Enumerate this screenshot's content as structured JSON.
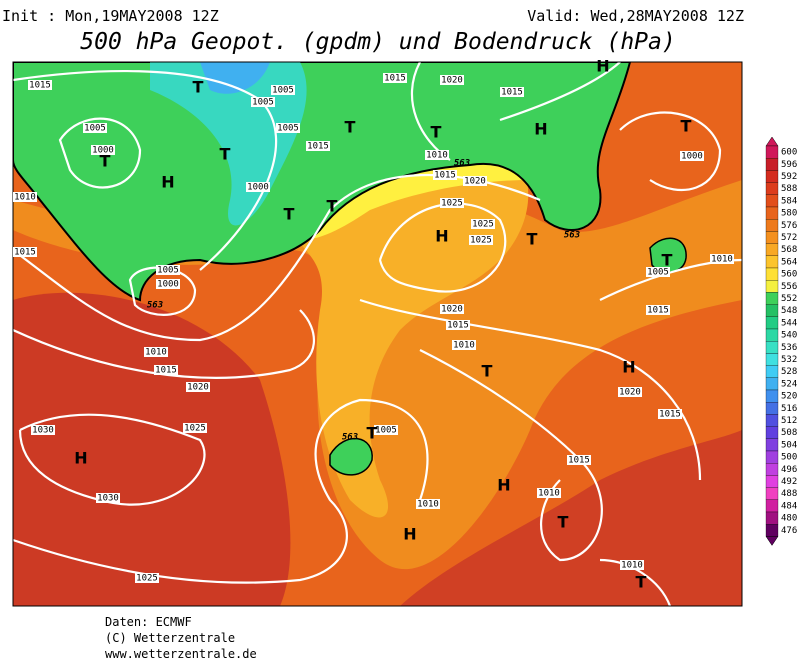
{
  "header": {
    "init": "Init : Mon,19MAY2008 12Z",
    "valid": "Valid: Wed,28MAY2008 12Z",
    "title": "500 hPa Geopot. (gpdm) und Bodendruck (hPa)"
  },
  "colorbar": {
    "labels": [
      "600",
      "596",
      "592",
      "588",
      "584",
      "580",
      "576",
      "572",
      "568",
      "564",
      "560",
      "556",
      "552",
      "548",
      "544",
      "540",
      "536",
      "532",
      "528",
      "524",
      "520",
      "516",
      "512",
      "508",
      "504",
      "500",
      "496",
      "492",
      "488",
      "484",
      "480",
      "476"
    ]
  },
  "map": {
    "isobar_labels": [
      "1015",
      "1005",
      "1005",
      "1015",
      "1020",
      "1015",
      "1005",
      "1000",
      "1005",
      "1015",
      "1010",
      "1015",
      "1020",
      "1000",
      "1000",
      "1010",
      "1025",
      "1025",
      "1025",
      "1015",
      "1005",
      "1000",
      "1005",
      "1010",
      "1020",
      "1015",
      "1010",
      "1015",
      "1010",
      "1015",
      "1020",
      "1025",
      "1030",
      "1005",
      "1020",
      "1015",
      "1015",
      "1030",
      "1010",
      "1010",
      "1025",
      "1010"
    ],
    "height_labels": [
      "563",
      "563",
      "563",
      "563"
    ],
    "pressure_centers": [
      "T",
      "H",
      "T",
      "T",
      "T",
      "T",
      "T",
      "T",
      "H",
      "H",
      "T",
      "H",
      "T",
      "T",
      "T",
      "H",
      "T",
      "H",
      "H",
      "T",
      "H",
      "T"
    ]
  },
  "footer": {
    "source": "Daten: ECMWF",
    "copyright": "(C) Wetterzentrale",
    "url": "www.wetterzentrale.de"
  }
}
